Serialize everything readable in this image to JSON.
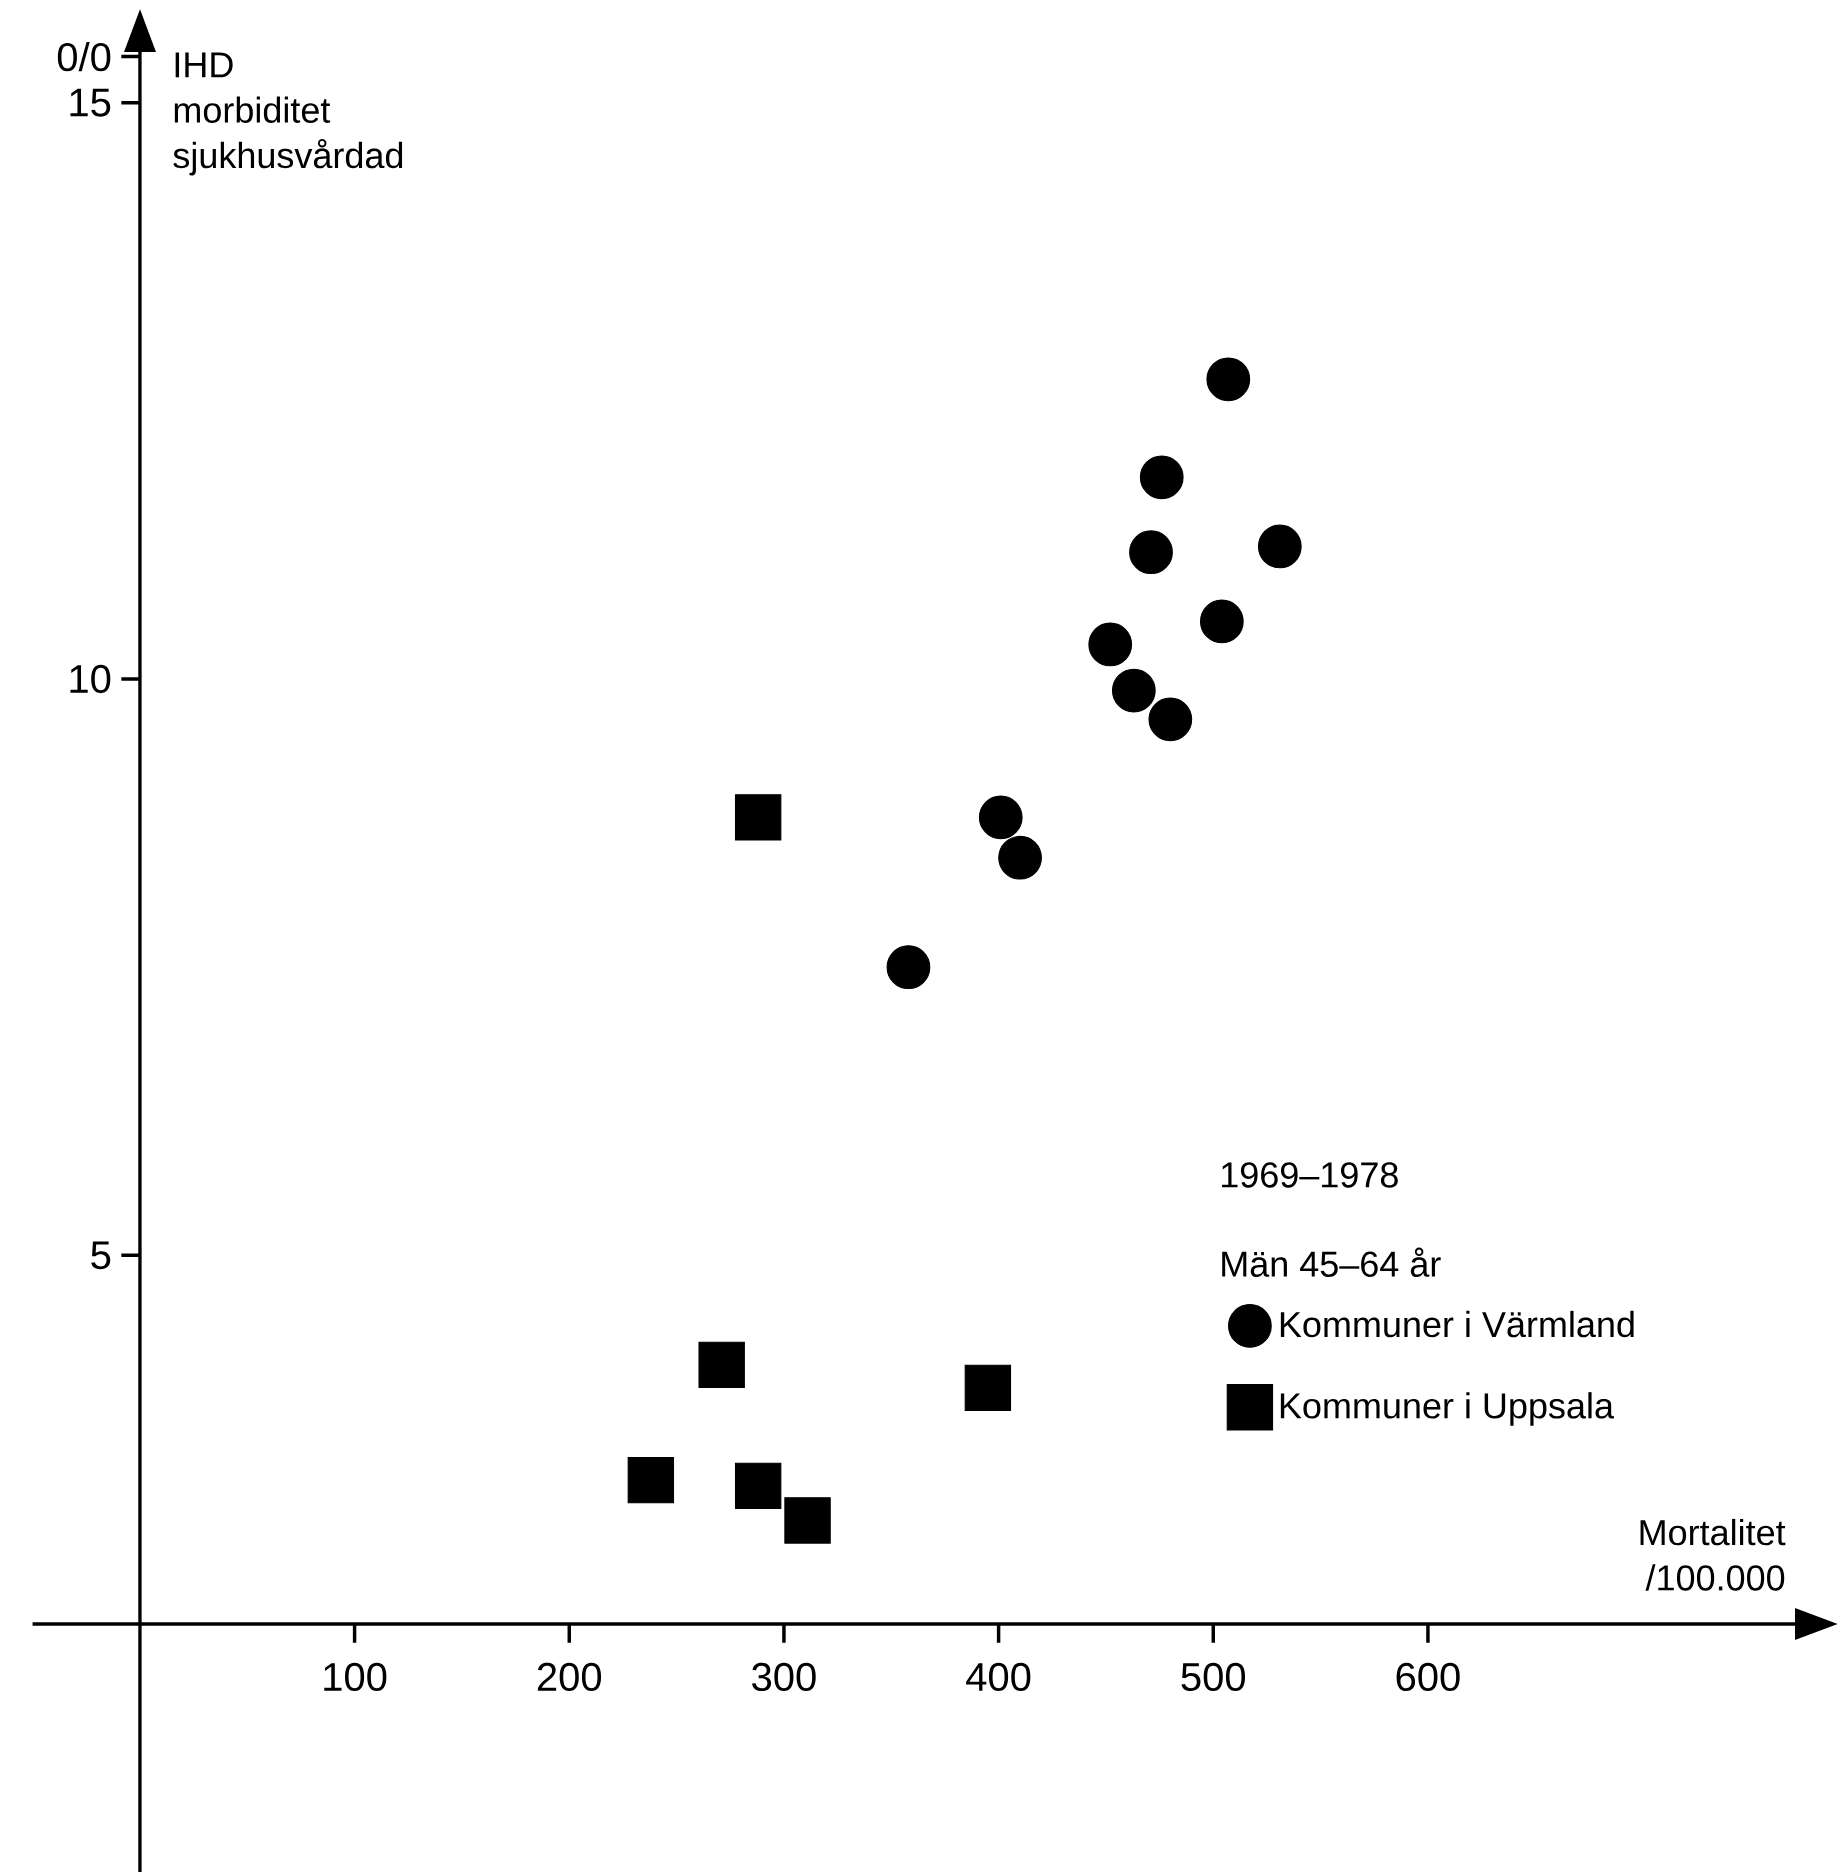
{
  "chart_data": {
    "type": "scatter",
    "xlabel": "Mortalitet /100.000",
    "ylabel": "IHD morbiditet sjukhusvårdad",
    "xlim": [
      -50,
      771
    ],
    "ylim": [
      -0.35,
      15.44
    ],
    "xticks": [
      100,
      200,
      300,
      400,
      500,
      600
    ],
    "yticks": [
      5,
      10,
      15,
      {
        "value": 15.4,
        "label": "0/0"
      }
    ],
    "annotations": [
      "1969–1978",
      "Män 45–64 år"
    ],
    "legend": "right",
    "series": [
      {
        "name": "Kommuner i Värmland",
        "color": "#000000",
        "marker": "circle",
        "x": [
          507,
          476,
          471,
          531,
          452,
          504,
          463,
          480,
          401,
          410,
          358
        ],
        "values": [
          12.6,
          11.75,
          11.1,
          11.15,
          10.3,
          10.5,
          9.9,
          9.65,
          8.8,
          8.45,
          7.5
        ]
      },
      {
        "name": "Kommuner i Uppsala",
        "color": "#000000",
        "marker": "square",
        "x": [
          288,
          271,
          395,
          238,
          288,
          311
        ],
        "values": [
          8.8,
          4.05,
          3.85,
          3.05,
          3.0,
          2.7
        ]
      }
    ]
  }
}
